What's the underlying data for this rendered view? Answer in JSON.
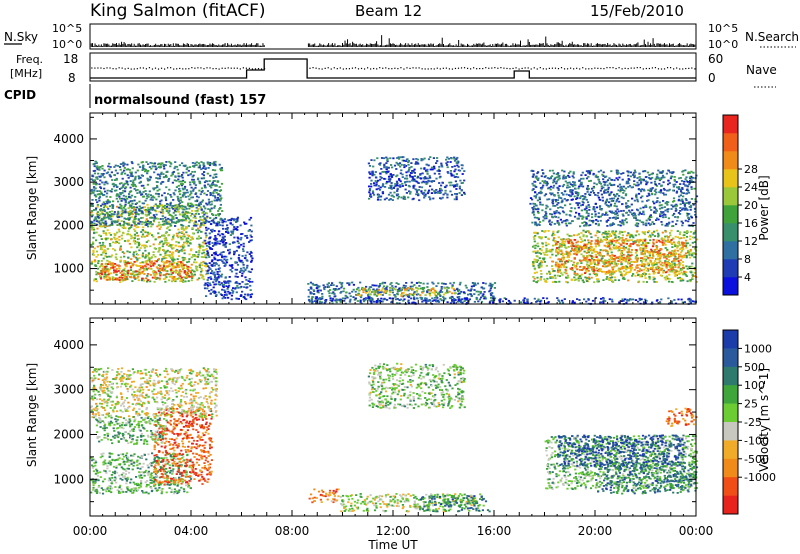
{
  "header": {
    "station": "King Salmon (fitACF)",
    "beam": "Beam 12",
    "date": "15/Feb/2010"
  },
  "noise_panel": {
    "left_label": "N.Sky",
    "right_label": "N.Search",
    "left_ticks": [
      "10^5",
      "10^0"
    ],
    "right_ticks": [
      "10^5",
      "10^0"
    ]
  },
  "freq_panel": {
    "left_label_1": "Freq.",
    "left_label_2": "[MHz]",
    "left_ticks": [
      "18",
      "8"
    ],
    "right_label": "Nave",
    "right_ticks": [
      "60",
      "0"
    ]
  },
  "cpid_panel": {
    "label": "CPID",
    "program": "normalsound (fast) 157"
  },
  "axes": {
    "x_ticks": [
      "00:00",
      "04:00",
      "08:00",
      "12:00",
      "16:00",
      "20:00",
      "00:00"
    ],
    "x_label": "Time UT",
    "y_ticks": [
      "1000",
      "2000",
      "3000",
      "4000"
    ],
    "y_label": "Slant Range [km]"
  },
  "chart_data": [
    {
      "type": "heatmap",
      "title": "",
      "xlabel": "",
      "ylabel": "Slant Range [km]",
      "xlim": [
        0,
        24
      ],
      "ylim": [
        180,
        4600
      ],
      "colorbar": {
        "label": "Power [dB]",
        "ticks": [
          "4",
          "8",
          "12",
          "16",
          "20",
          "24",
          "28"
        ],
        "colors": [
          "#0c10dc",
          "#1f3cb4",
          "#2f6fa1",
          "#378f6c",
          "#3fa23b",
          "#9bc83a",
          "#e8c41b",
          "#f08a18",
          "#f0601a",
          "#e8251e"
        ]
      },
      "regions": [
        {
          "t0": 0.0,
          "t1": 4.6,
          "r0": 700,
          "r1": 2500,
          "level": 0.55
        },
        {
          "t0": 0.3,
          "t1": 4.0,
          "r0": 750,
          "r1": 1200,
          "level": 0.8
        },
        {
          "t0": 0.0,
          "t1": 5.2,
          "r0": 2000,
          "r1": 3500,
          "level": 0.3
        },
        {
          "t0": 4.5,
          "t1": 6.4,
          "r0": 300,
          "r1": 2200,
          "level": 0.15
        },
        {
          "t0": 8.6,
          "t1": 16.0,
          "r0": 250,
          "r1": 700,
          "level": 0.25
        },
        {
          "t0": 10.5,
          "t1": 14.5,
          "r0": 380,
          "r1": 580,
          "level": 0.6
        },
        {
          "t0": 11.0,
          "t1": 14.8,
          "r0": 2600,
          "r1": 3600,
          "level": 0.2
        },
        {
          "t0": 17.5,
          "t1": 24.0,
          "r0": 700,
          "r1": 1900,
          "level": 0.55
        },
        {
          "t0": 18.4,
          "t1": 23.5,
          "r0": 900,
          "r1": 1700,
          "level": 0.75
        },
        {
          "t0": 17.4,
          "t1": 24.0,
          "r0": 2000,
          "r1": 3300,
          "level": 0.25
        },
        {
          "t0": 8.6,
          "t1": 24.0,
          "r0": 200,
          "r1": 340,
          "level": 0.15
        }
      ]
    },
    {
      "type": "heatmap",
      "title": "",
      "xlabel": "Time UT",
      "ylabel": "Slant Range [km]",
      "xlim": [
        0,
        24
      ],
      "ylim": [
        180,
        4600
      ],
      "colorbar": {
        "label": "Velocity [m s^-1]",
        "ticks": [
          "1000",
          "500",
          "100",
          "25",
          "-25",
          "-100",
          "-500",
          "-1000"
        ],
        "colors": [
          "#1c3caa",
          "#2a5a9c",
          "#2f7a6e",
          "#3ea63a",
          "#6ccc34",
          "#c8c8c0",
          "#f0ac28",
          "#f08a18",
          "#f04e16",
          "#e8221c"
        ]
      },
      "regions": [
        {
          "t0": 0.0,
          "t1": 4.0,
          "r0": 700,
          "r1": 1600,
          "level": 0.4
        },
        {
          "t0": 2.5,
          "t1": 4.8,
          "r0": 900,
          "r1": 2600,
          "level": 0.85
        },
        {
          "t0": 0.2,
          "t1": 3.0,
          "r0": 1800,
          "r1": 2400,
          "level": 0.4
        },
        {
          "t0": 0.0,
          "t1": 5.0,
          "r0": 2400,
          "r1": 3500,
          "level": 0.55
        },
        {
          "t0": 8.6,
          "t1": 9.8,
          "r0": 500,
          "r1": 800,
          "level": 0.75
        },
        {
          "t0": 9.8,
          "t1": 15.5,
          "r0": 300,
          "r1": 700,
          "level": 0.5
        },
        {
          "t0": 13.0,
          "t1": 15.8,
          "r0": 300,
          "r1": 650,
          "level": 0.25
        },
        {
          "t0": 11.0,
          "t1": 14.8,
          "r0": 2600,
          "r1": 3600,
          "level": 0.45
        },
        {
          "t0": 18.0,
          "t1": 24.0,
          "r0": 800,
          "r1": 2000,
          "level": 0.42
        },
        {
          "t0": 20.0,
          "t1": 24.0,
          "r0": 700,
          "r1": 1400,
          "level": 0.25
        },
        {
          "t0": 18.5,
          "t1": 23.5,
          "r0": 1300,
          "r1": 2000,
          "level": 0.1
        },
        {
          "t0": 22.8,
          "t1": 24.0,
          "r0": 2200,
          "r1": 2600,
          "level": 0.8
        }
      ]
    }
  ]
}
